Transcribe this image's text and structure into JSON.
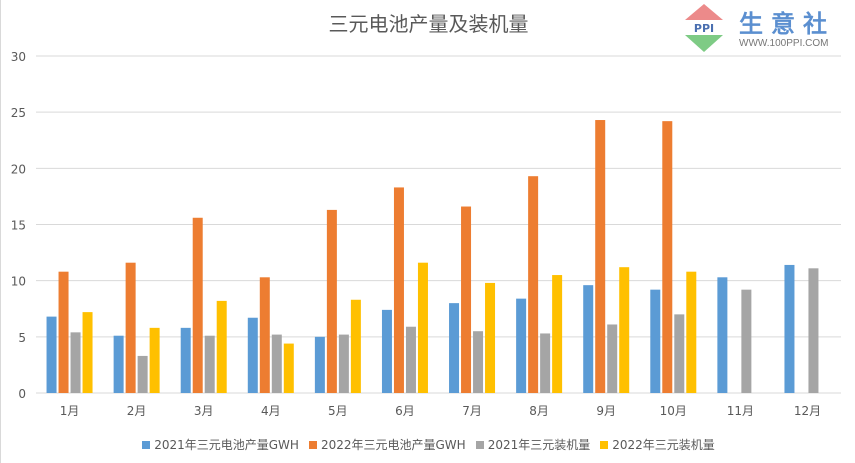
{
  "logo": {
    "name": "生意社",
    "url": "WWW.100PPI.COM",
    "mark": "PPI"
  },
  "chart_data": {
    "type": "bar",
    "title": "三元电池产量及装机量",
    "categories": [
      "1月",
      "2月",
      "3月",
      "4月",
      "5月",
      "6月",
      "7月",
      "8月",
      "9月",
      "10月",
      "11月",
      "12月"
    ],
    "ylim": [
      0,
      30
    ],
    "yticks": [
      0,
      5,
      10,
      15,
      20,
      25,
      30
    ],
    "grid": true,
    "legend": "bottom",
    "series": [
      {
        "name": "2021年三元电池产量GWH",
        "color": "#5b9bd5",
        "values": [
          6.8,
          5.1,
          5.8,
          6.7,
          5.0,
          7.4,
          8.0,
          8.4,
          9.6,
          9.2,
          10.3,
          11.4
        ]
      },
      {
        "name": "2022年三元电池产量GWH",
        "color": "#ed7d31",
        "values": [
          10.8,
          11.6,
          15.6,
          10.3,
          16.3,
          18.3,
          16.6,
          19.3,
          24.3,
          24.2,
          null,
          null
        ]
      },
      {
        "name": "2021年三元装机量",
        "color": "#a5a5a5",
        "values": [
          5.4,
          3.3,
          5.1,
          5.2,
          5.2,
          5.9,
          5.5,
          5.3,
          6.1,
          7.0,
          9.2,
          11.1
        ]
      },
      {
        "name": "2022年三元装机量",
        "color": "#ffc000",
        "values": [
          7.2,
          5.8,
          8.2,
          4.4,
          8.3,
          11.6,
          9.8,
          10.5,
          11.2,
          10.8,
          null,
          null
        ]
      }
    ]
  }
}
